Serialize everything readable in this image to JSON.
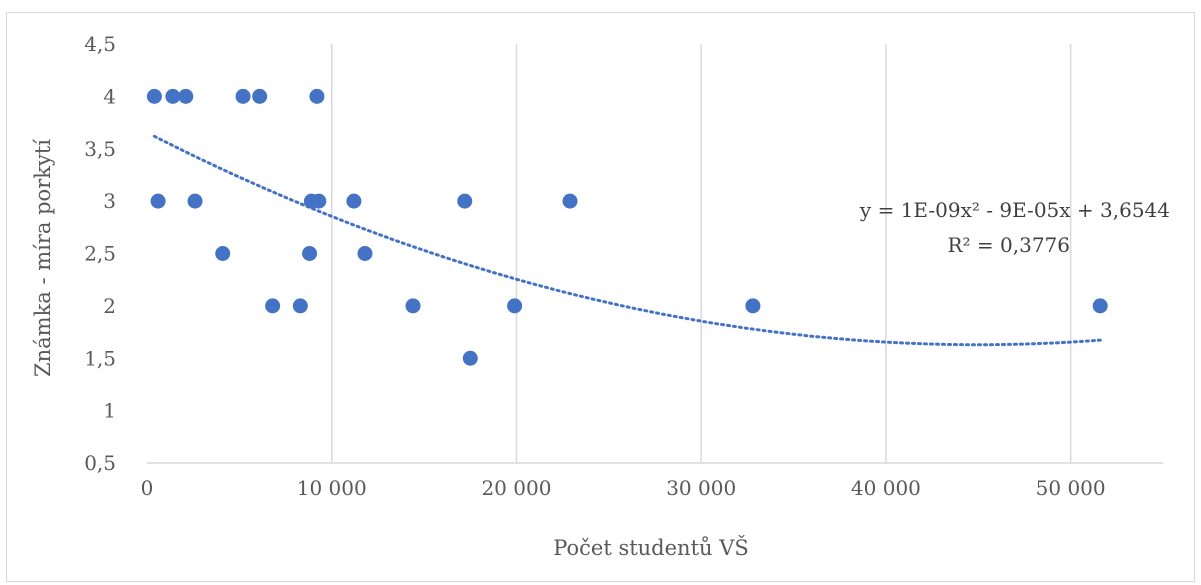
{
  "chart_data": {
    "type": "scatter",
    "title": "",
    "xlabel": "Počet studentů VŠ",
    "ylabel": "Známka - míra porkytí",
    "xlim": [
      0,
      55000
    ],
    "ylim": [
      0.5,
      4.5
    ],
    "x_ticks": [
      0,
      10000,
      20000,
      30000,
      40000,
      50000
    ],
    "x_tick_labels": [
      "0",
      "10 000",
      "20 000",
      "30 000",
      "40 000",
      "50 000"
    ],
    "y_ticks": [
      0.5,
      1,
      1.5,
      2,
      2.5,
      3,
      3.5,
      4,
      4.5
    ],
    "y_tick_labels": [
      "0,5",
      "1",
      "1,5",
      "2",
      "2,5",
      "3",
      "3,5",
      "4",
      "4,5"
    ],
    "grid": "vertical",
    "legend": "none",
    "colors": {
      "points": "#4472c4",
      "trendline": "#4472c4",
      "grid": "#d9d9d9"
    },
    "series": [
      {
        "x": [
          400,
          1400,
          2100,
          5200,
          6100,
          9200,
          600,
          2600,
          8900,
          9300,
          11200,
          17200,
          22900,
          4100,
          8800,
          11800,
          6800,
          8300,
          14400,
          19900,
          32800,
          51600,
          17500
        ],
        "y": [
          4,
          4,
          4,
          4,
          4,
          4,
          3,
          3,
          3,
          3,
          3,
          3,
          3,
          2.5,
          2.5,
          2.5,
          2,
          2,
          2,
          2,
          2,
          2,
          1.5
        ]
      }
    ],
    "trendline": {
      "type": "polynomial-2",
      "coefficients": [
        1e-09,
        -9e-05,
        3.6544
      ],
      "x_range": [
        400,
        51600
      ],
      "equation": "y = 1E-09x² - 9E-05x + 3,6544",
      "r_squared": "R² = 0,3776"
    }
  }
}
